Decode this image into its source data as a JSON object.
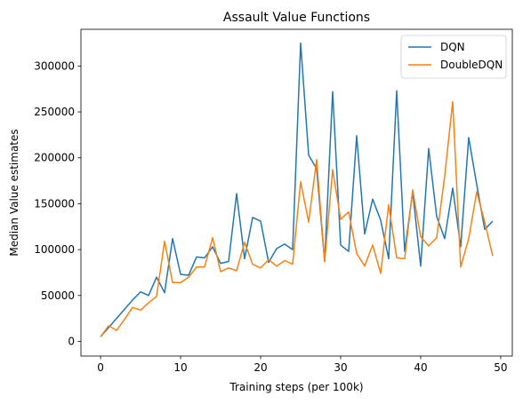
{
  "chart_data": {
    "type": "line",
    "title": "Assault Value Functions",
    "xlabel": "Training steps (per 100k)",
    "ylabel": "Median Value estimates",
    "xlim": [
      -2.45,
      51.45
    ],
    "ylim": [
      -16000,
      340000
    ],
    "xticks": [
      0,
      10,
      20,
      30,
      40,
      50
    ],
    "yticks": [
      0,
      50000,
      100000,
      150000,
      200000,
      250000,
      300000
    ],
    "grid": false,
    "legend_position": "top-right",
    "x": [
      0,
      1,
      2,
      3,
      4,
      5,
      6,
      7,
      8,
      9,
      10,
      11,
      12,
      13,
      14,
      15,
      16,
      17,
      18,
      19,
      20,
      21,
      22,
      23,
      24,
      25,
      26,
      27,
      28,
      29,
      30,
      31,
      32,
      33,
      34,
      35,
      36,
      37,
      38,
      39,
      40,
      41,
      42,
      43,
      44,
      45,
      46,
      47,
      48,
      49
    ],
    "series": [
      {
        "name": "DQN",
        "color": "#1f77b4",
        "values": [
          5000,
          15000,
          25000,
          35000,
          45000,
          54000,
          50000,
          70000,
          53000,
          112000,
          73000,
          72000,
          92000,
          91000,
          103000,
          85000,
          87000,
          161000,
          90000,
          135000,
          131000,
          86000,
          101000,
          106000,
          100000,
          325000,
          203000,
          188000,
          87000,
          272000,
          105000,
          98000,
          224000,
          117000,
          155000,
          132000,
          90000,
          273000,
          98000,
          163000,
          82000,
          210000,
          136000,
          112000,
          167000,
          103000,
          222000,
          171000,
          122000,
          131000
        ]
      },
      {
        "name": "DoubleDQN",
        "color": "#ff7f0e",
        "values": [
          5000,
          17000,
          12000,
          24000,
          37000,
          34000,
          42000,
          49000,
          109000,
          64000,
          64000,
          70000,
          81000,
          81000,
          113000,
          76000,
          80000,
          77000,
          108000,
          84000,
          80000,
          89000,
          82000,
          88000,
          84000,
          174000,
          130000,
          198000,
          87000,
          187000,
          133000,
          141000,
          96000,
          82000,
          105000,
          74000,
          149000,
          91000,
          90000,
          165000,
          114000,
          104000,
          113000,
          180000,
          261000,
          81000,
          112000,
          163000,
          130000,
          93000
        ]
      }
    ]
  }
}
